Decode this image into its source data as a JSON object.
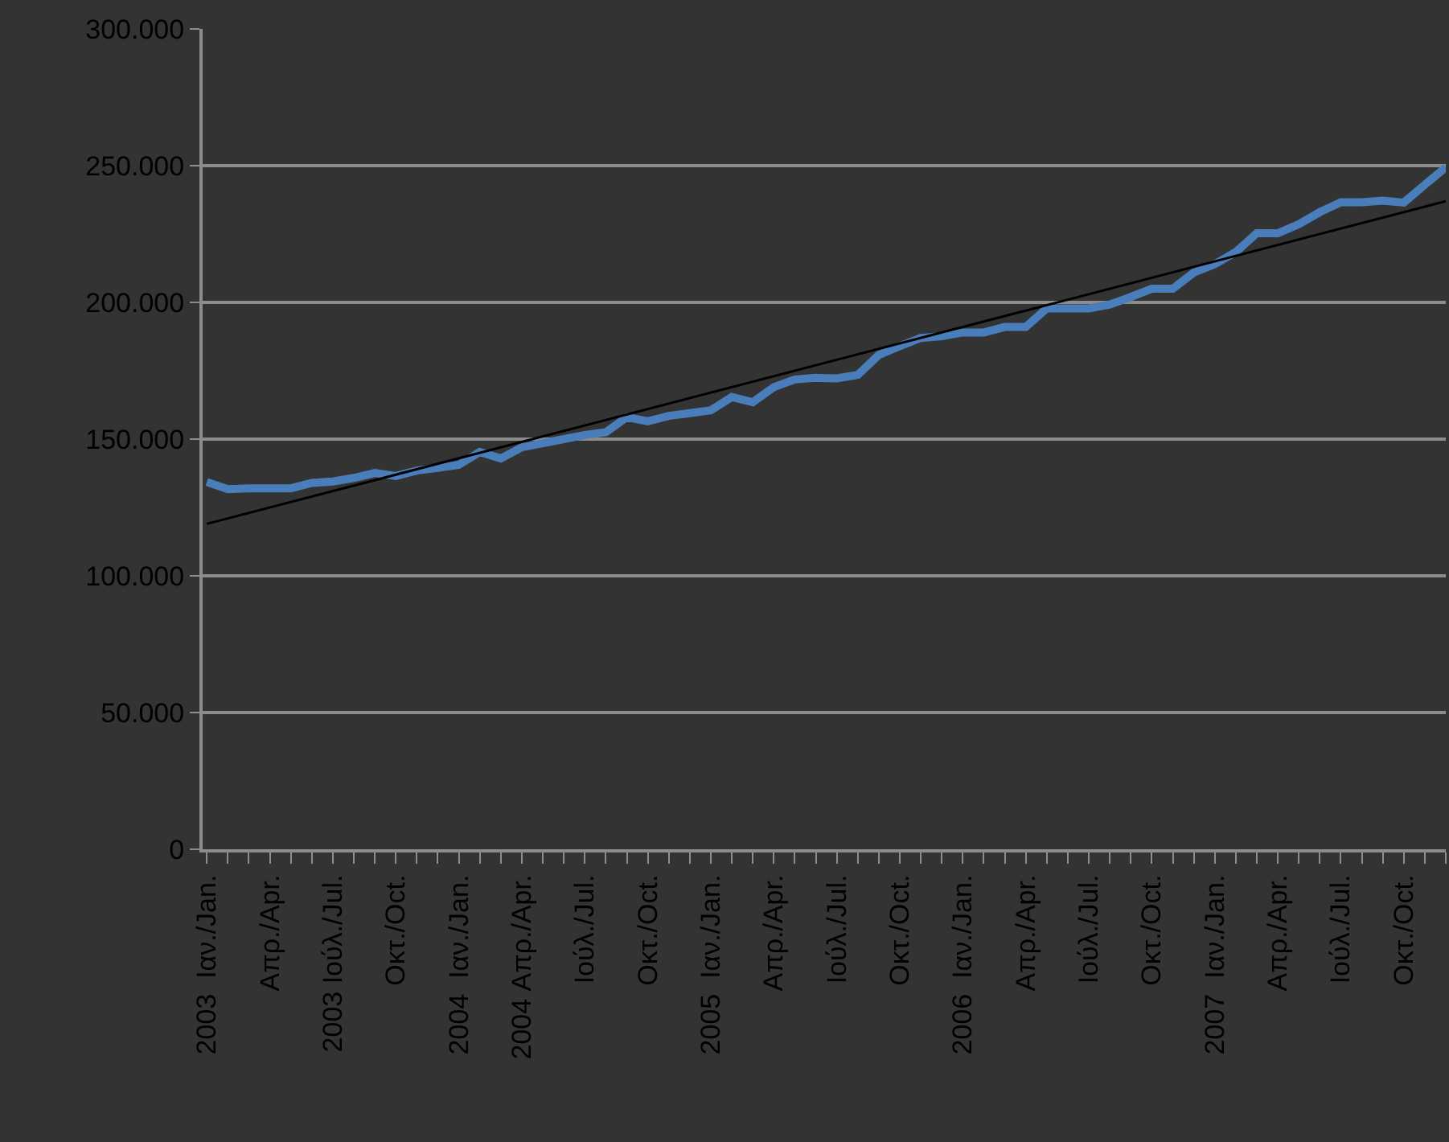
{
  "chart_data": {
    "type": "line",
    "categories": [
      "2003  Ιαν./Jan.",
      null,
      null,
      "Απρ./Apr.",
      null,
      null,
      "2003 Ιούλ./Jul.",
      null,
      null,
      "Οκτ./Oct.",
      null,
      null,
      "2004  Ιαν./Jan.",
      null,
      null,
      "2004 Απρ./Apr.",
      null,
      null,
      "Ιούλ./Jul.",
      null,
      null,
      "Οκτ./Oct.",
      null,
      null,
      "2005  Ιαν./Jan.",
      null,
      null,
      "Απρ./Apr.",
      null,
      null,
      "Ιούλ./Jul.",
      null,
      null,
      "Οκτ./Oct.",
      null,
      null,
      "2006  Ιαν./Jan.",
      null,
      null,
      "Απρ./Apr.",
      null,
      null,
      "Ιούλ./Jul.",
      null,
      null,
      "Οκτ./Oct.",
      null,
      null,
      "2007  Ιαν./Jan.",
      null,
      null,
      "Απρ./Apr.",
      null,
      null,
      "Ιούλ./Jul.",
      null,
      null,
      "Οκτ./Oct.",
      null,
      null
    ],
    "series": [
      {
        "color": "#4a7ebb",
        "values": [
          134300,
          131700,
          132000,
          132000,
          132000,
          134000,
          134500,
          135800,
          137600,
          136500,
          138500,
          139500,
          140600,
          145300,
          142900,
          147000,
          148500,
          150000,
          151500,
          152500,
          158000,
          156500,
          158500,
          159500,
          160500,
          165400,
          163500,
          169000,
          171800,
          172400,
          172200,
          173500,
          180800,
          184000,
          187000,
          187600,
          189000,
          189000,
          191000,
          191000,
          197800,
          197800,
          197800,
          199200,
          202000,
          205000,
          205000,
          210900,
          214000,
          218400,
          225300,
          225300,
          228600,
          233000,
          236600,
          236600,
          237200,
          236500,
          243000,
          249400
        ]
      },
      {
        "color": "#000000",
        "values": [
          119000,
          null,
          null,
          null,
          null,
          null,
          null,
          null,
          null,
          null,
          null,
          null,
          null,
          null,
          null,
          null,
          null,
          null,
          null,
          null,
          null,
          null,
          null,
          null,
          null,
          null,
          null,
          null,
          null,
          null,
          null,
          null,
          null,
          null,
          null,
          null,
          null,
          null,
          null,
          null,
          null,
          null,
          null,
          null,
          null,
          null,
          null,
          null,
          null,
          null,
          null,
          null,
          null,
          null,
          null,
          null,
          null,
          null,
          null,
          237000
        ]
      }
    ],
    "ylim": [
      0,
      300000
    ],
    "yticks": [
      0,
      {
        "value": 50000,
        "label": "50.000"
      },
      {
        "value": 100000,
        "label": "100.000"
      },
      {
        "value": 150000,
        "label": "150.000"
      },
      {
        "value": 200000,
        "label": "200.000"
      },
      {
        "value": 250000,
        "label": "250.000"
      },
      {
        "value": 300000,
        "label": "300.000"
      }
    ],
    "grid": "y",
    "marker": "none",
    "line_style": "solid"
  }
}
